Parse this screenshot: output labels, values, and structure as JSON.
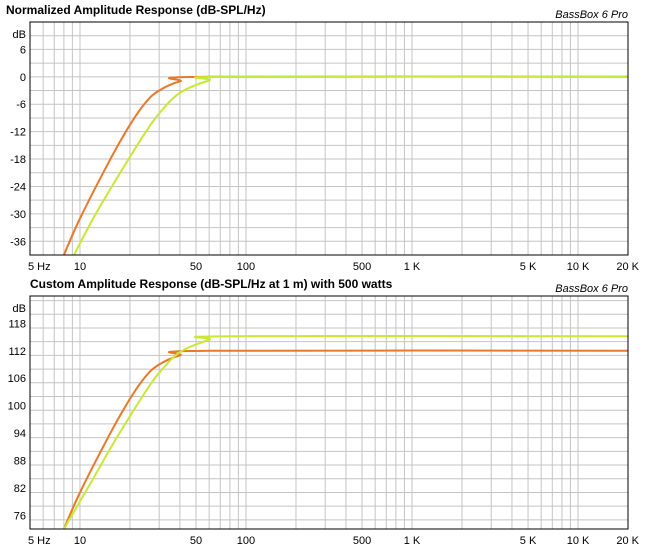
{
  "chart_data": [
    {
      "type": "line",
      "title": "Normalized Amplitude Response (dB-SPL/Hz)",
      "brand": "BassBox 6 Pro",
      "ylabel": "dB",
      "xscale": "log",
      "xlim": [
        5,
        20000
      ],
      "ylim": [
        -39,
        12
      ],
      "grid": true,
      "x_ticks": [
        {
          "value": 5,
          "label": "5 Hz"
        },
        {
          "value": 10,
          "label": "10"
        },
        {
          "value": 50,
          "label": "50"
        },
        {
          "value": 100,
          "label": "100"
        },
        {
          "value": 500,
          "label": "500"
        },
        {
          "value": 1000,
          "label": "1 K"
        },
        {
          "value": 5000,
          "label": "5 K"
        },
        {
          "value": 10000,
          "label": "10 K"
        },
        {
          "value": 20000,
          "label": "20 K"
        }
      ],
      "y_ticks": [
        {
          "value": 6,
          "label": "6"
        },
        {
          "value": 0,
          "label": "0"
        },
        {
          "value": -6,
          "label": "-6"
        },
        {
          "value": -12,
          "label": "-12"
        },
        {
          "value": -18,
          "label": "-18"
        },
        {
          "value": -24,
          "label": "-24"
        },
        {
          "value": -30,
          "label": "-30"
        },
        {
          "value": -36,
          "label": "-36"
        }
      ],
      "series": [
        {
          "color": "#e8782a",
          "x": [
            8,
            10,
            15,
            20,
            25,
            30,
            40,
            60,
            20000
          ],
          "y": [
            -39,
            -31,
            -18.5,
            -10.5,
            -5.5,
            -3,
            -1,
            0,
            0
          ]
        },
        {
          "color": "#c8e836",
          "x": [
            9.2,
            12,
            15,
            20,
            25,
            30,
            40,
            60,
            80,
            20000
          ],
          "y": [
            -39,
            -31,
            -25,
            -17.5,
            -12,
            -8,
            -3.5,
            -0.8,
            0,
            0
          ]
        }
      ]
    },
    {
      "type": "line",
      "title": "Custom Amplitude Response (dB-SPL/Hz at 1 m) with 500 watts",
      "brand": "BassBox 6 Pro",
      "ylabel": "dB",
      "xscale": "log",
      "xlim": [
        5,
        20000
      ],
      "ylim": [
        73,
        124
      ],
      "grid": true,
      "x_ticks": [
        {
          "value": 5,
          "label": "5 Hz"
        },
        {
          "value": 10,
          "label": "10"
        },
        {
          "value": 50,
          "label": "50"
        },
        {
          "value": 100,
          "label": "100"
        },
        {
          "value": 500,
          "label": "500"
        },
        {
          "value": 1000,
          "label": "1 K"
        },
        {
          "value": 5000,
          "label": "5 K"
        },
        {
          "value": 10000,
          "label": "10 K"
        },
        {
          "value": 20000,
          "label": "20 K"
        }
      ],
      "y_ticks": [
        {
          "value": 118,
          "label": "118"
        },
        {
          "value": 112,
          "label": "112"
        },
        {
          "value": 106,
          "label": "106"
        },
        {
          "value": 100,
          "label": "100"
        },
        {
          "value": 94,
          "label": "94"
        },
        {
          "value": 88,
          "label": "88"
        },
        {
          "value": 82,
          "label": "82"
        },
        {
          "value": 76,
          "label": "76"
        }
      ],
      "series": [
        {
          "color": "#e8782a",
          "x": [
            8,
            10,
            15,
            20,
            25,
            30,
            40,
            60,
            20000
          ],
          "y": [
            73,
            81,
            93.5,
            101.5,
            106.5,
            109,
            111,
            112,
            112
          ]
        },
        {
          "color": "#c8e836",
          "x": [
            8,
            12,
            15,
            20,
            25,
            30,
            40,
            60,
            80,
            20000
          ],
          "y": [
            73,
            84,
            90.2,
            97.7,
            103.2,
            107.2,
            111.7,
            114.4,
            115.2,
            115.2
          ]
        }
      ]
    }
  ]
}
